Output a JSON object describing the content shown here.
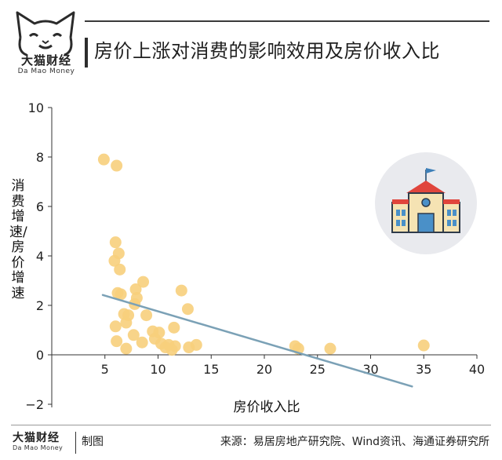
{
  "header": {
    "title": "房价上涨对消费的影响效用及房价收入比",
    "brand_cn": "大猫财经",
    "brand_en": "Da Mao Money"
  },
  "footer": {
    "brand_cn": "大猫财经",
    "brand_en": "Da Mao Money",
    "made_label": "制图",
    "source": "来源：易居房地产研究院、Wind资讯、海通证券研究所"
  },
  "icons": {
    "logo": "cat-face-icon",
    "illustration": "school-building-icon"
  },
  "colors": {
    "point": "#f7cf7c",
    "trend": "#7ba1b6",
    "icon_circle": "#e9eaee"
  },
  "chart_data": {
    "type": "scatter",
    "title": "房价上涨对消费的影响效用及房价收入比",
    "xlabel": "房价收入比",
    "ylabel": "消费增速/房价增速",
    "xlim": [
      0,
      40
    ],
    "ylim": [
      -2,
      10
    ],
    "xticks": [
      5,
      10,
      15,
      20,
      25,
      30,
      35,
      40
    ],
    "yticks": [
      -2,
      0,
      2,
      4,
      6,
      8,
      10
    ],
    "ytick_labels": [
      "−2",
      "0",
      "2",
      "4",
      "6",
      "8",
      "10"
    ],
    "grid": false,
    "points": [
      {
        "x": 4.9,
        "y": 7.9
      },
      {
        "x": 6.1,
        "y": 7.65
      },
      {
        "x": 6.0,
        "y": 4.55
      },
      {
        "x": 6.3,
        "y": 4.1
      },
      {
        "x": 5.9,
        "y": 3.8
      },
      {
        "x": 6.4,
        "y": 3.45
      },
      {
        "x": 6.2,
        "y": 2.5
      },
      {
        "x": 6.5,
        "y": 2.45
      },
      {
        "x": 8.6,
        "y": 2.95
      },
      {
        "x": 7.9,
        "y": 2.65
      },
      {
        "x": 8.0,
        "y": 2.3
      },
      {
        "x": 7.8,
        "y": 2.05
      },
      {
        "x": 12.2,
        "y": 2.6
      },
      {
        "x": 12.8,
        "y": 1.85
      },
      {
        "x": 6.8,
        "y": 1.65
      },
      {
        "x": 7.2,
        "y": 1.6
      },
      {
        "x": 8.9,
        "y": 1.6
      },
      {
        "x": 7.0,
        "y": 1.3
      },
      {
        "x": 6.0,
        "y": 1.15
      },
      {
        "x": 11.5,
        "y": 1.1
      },
      {
        "x": 9.5,
        "y": 0.95
      },
      {
        "x": 10.1,
        "y": 0.9
      },
      {
        "x": 9.7,
        "y": 0.65
      },
      {
        "x": 7.7,
        "y": 0.8
      },
      {
        "x": 6.1,
        "y": 0.55
      },
      {
        "x": 8.5,
        "y": 0.5
      },
      {
        "x": 10.3,
        "y": 0.45
      },
      {
        "x": 11.0,
        "y": 0.4
      },
      {
        "x": 11.6,
        "y": 0.35
      },
      {
        "x": 10.7,
        "y": 0.3
      },
      {
        "x": 12.9,
        "y": 0.3
      },
      {
        "x": 13.6,
        "y": 0.4
      },
      {
        "x": 7.0,
        "y": 0.25
      },
      {
        "x": 11.3,
        "y": 0.2
      },
      {
        "x": 22.9,
        "y": 0.35
      },
      {
        "x": 23.2,
        "y": 0.25
      },
      {
        "x": 26.2,
        "y": 0.25
      },
      {
        "x": 35.0,
        "y": 0.38
      }
    ],
    "trendline": {
      "x": [
        4.8,
        33.9
      ],
      "y": [
        2.42,
        -1.28
      ]
    }
  }
}
